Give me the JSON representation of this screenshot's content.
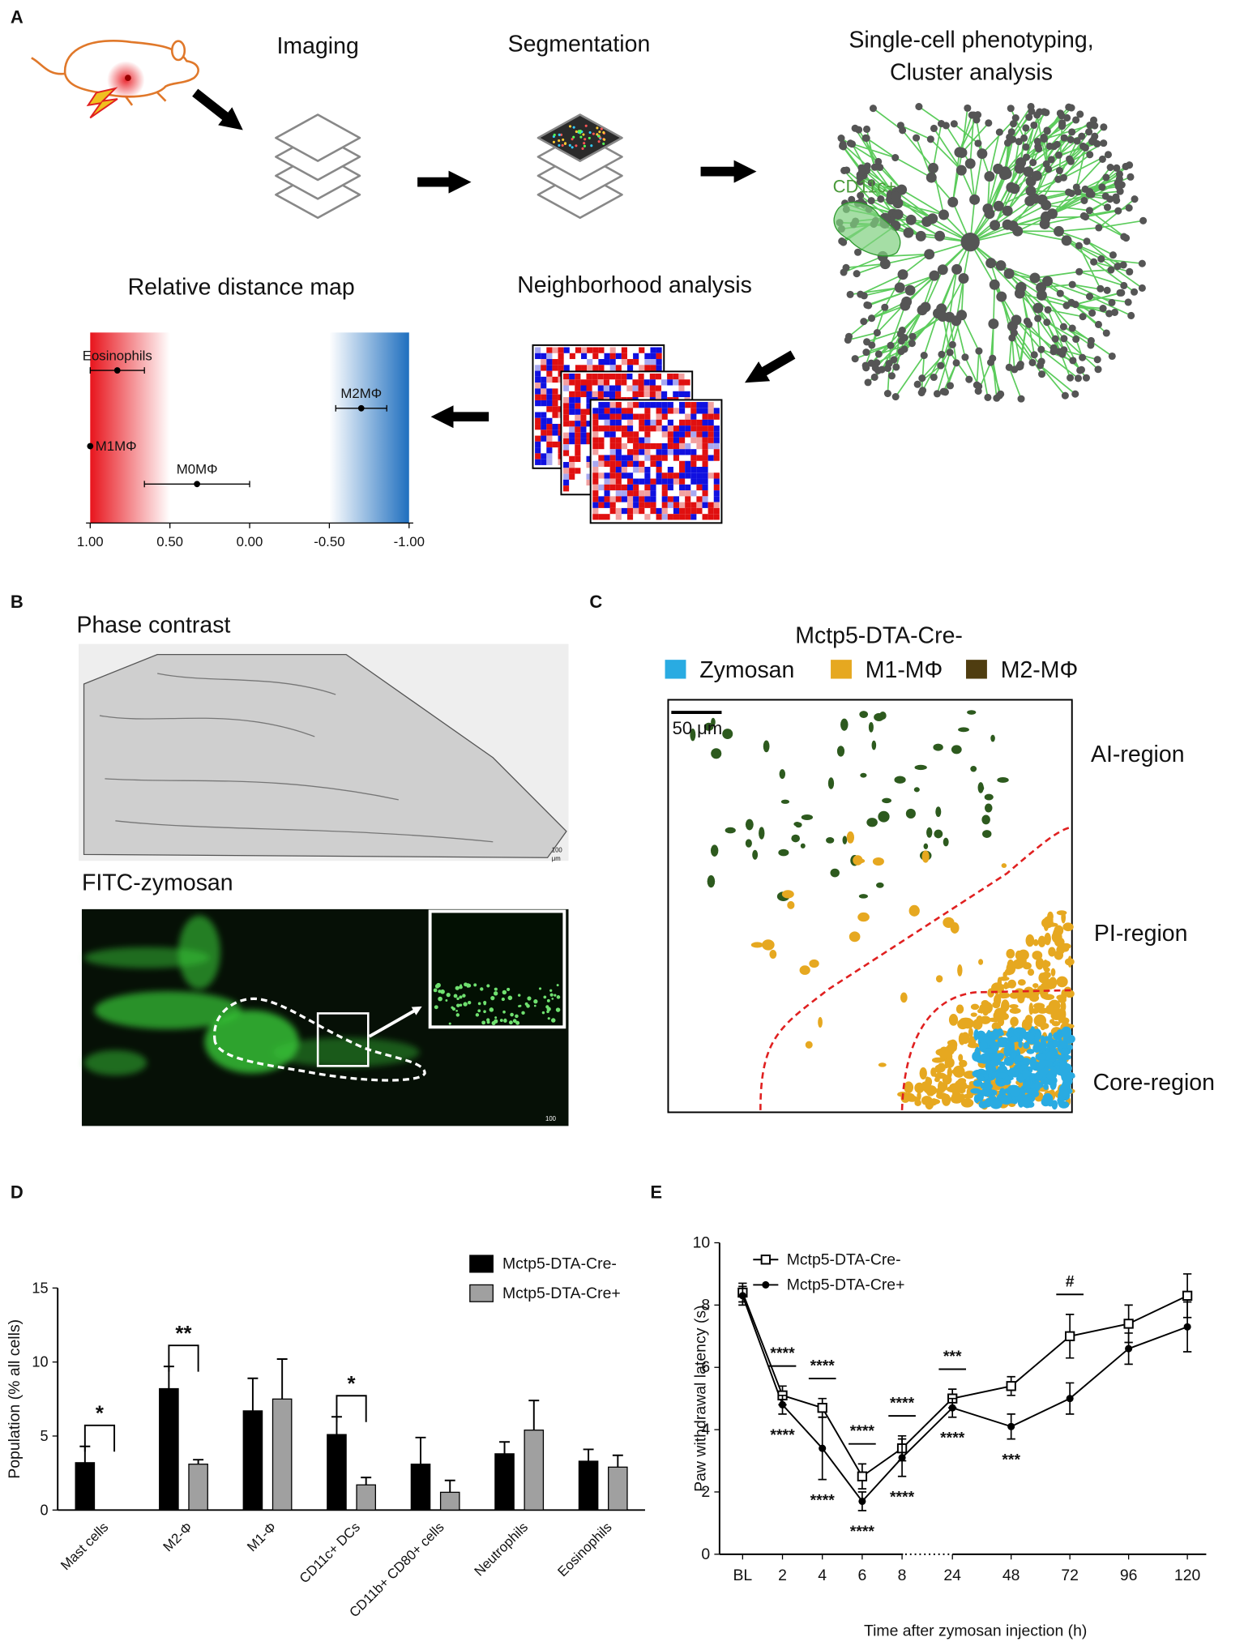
{
  "panel_labels": [
    "A",
    "B",
    "C",
    "D",
    "E"
  ],
  "panel_a": {
    "steps": {
      "imaging": "Imaging",
      "segmentation": "Segmentation",
      "phenotyping": [
        "Single-cell phenotyping,",
        "Cluster analysis"
      ],
      "neighborhood": "Neighborhood analysis",
      "distance_map": "Relative distance map"
    },
    "cluster_label": "CD11c+"
  },
  "panel_b": {
    "phase_title": "Phase contrast",
    "fitc_title": "FITC-zymosan",
    "scale_phase": [
      "100",
      "μm"
    ],
    "scale_fitc": "100"
  },
  "panel_c": {
    "title": "Mctp5-DTA-Cre-",
    "legend": [
      {
        "name": "Zymosan",
        "color": "#29abe2"
      },
      {
        "name": "M1-MΦ",
        "color": "#e6a820"
      },
      {
        "name": "M2-MΦ",
        "color": "#4f3d10"
      }
    ],
    "scale_bar": "50 μm",
    "regions": [
      "AI-region",
      "PI-region",
      "Core-region"
    ]
  },
  "chart_data": [
    {
      "type": "dotplot",
      "categories": [
        "Eosinophils",
        "M2MΦ",
        "M1MΦ",
        "M0MΦ"
      ],
      "values": [
        0.83,
        -0.7,
        1.0,
        0.33
      ],
      "errors": [
        0.17,
        0.16,
        null,
        0.33
      ],
      "xlim": [
        1,
        -1
      ],
      "xticks": [
        {
          "value": 1,
          "label": "1.00"
        },
        {
          "value": 0.5,
          "label": "0.50"
        },
        {
          "value": 0,
          "label": "0.00"
        },
        {
          "value": -0.5,
          "label": "-0.50"
        },
        {
          "value": -1,
          "label": "-1.00"
        }
      ],
      "gradient_colors": [
        "#e8141c",
        "#1f6fbf"
      ]
    },
    {
      "type": "bar",
      "ylabel": "Population (% all cells)",
      "categories": [
        "Mast cells",
        "M2-Φ",
        "M1-Φ",
        "CD11c+ DCs",
        "CD11b+ CD80+ cells",
        "Neutrophils",
        "Eosinophils"
      ],
      "series": [
        {
          "name": "Mctp5-DTA-Cre-",
          "color": "#000000",
          "values": [
            3.2,
            8.2,
            6.7,
            5.1,
            3.1,
            3.8,
            3.3
          ],
          "errors": [
            1.1,
            1.5,
            2.2,
            1.2,
            1.8,
            0.8,
            0.8
          ]
        },
        {
          "name": "Mctp5-DTA-Cre+",
          "color": "#a0a0a0",
          "values": [
            0,
            3.1,
            7.5,
            1.7,
            1.2,
            5.4,
            2.9
          ],
          "errors": [
            null,
            0.3,
            2.7,
            0.5,
            0.8,
            2.0,
            0.8
          ]
        }
      ],
      "ylim": [
        0,
        15
      ],
      "yticks": [
        0,
        5,
        10,
        15
      ],
      "significance": [
        "*",
        "**",
        null,
        "*",
        null,
        null,
        null
      ],
      "legend": "upper right"
    },
    {
      "type": "line",
      "ylabel": "Paw withdrawal latency (s)",
      "xlabel": "Time after zymosan injection (h)",
      "categories": [
        "BL",
        "2",
        "4",
        "6",
        "8",
        "24",
        "48",
        "72",
        "96",
        "120"
      ],
      "series": [
        {
          "name": "Mctp5-DTA-Cre-",
          "color": "#000000",
          "marker": "open-square",
          "values": [
            8.4,
            5.1,
            4.7,
            2.5,
            3.4,
            5.0,
            5.4,
            7.0,
            7.4,
            8.3
          ],
          "errors": [
            0.3,
            0.3,
            0.3,
            0.4,
            0.4,
            0.3,
            0.3,
            0.7,
            0.6,
            0.7
          ]
        },
        {
          "name": "Mctp5-DTA-Cre+",
          "color": "#000000",
          "marker": "filled-circle",
          "values": [
            8.3,
            4.8,
            3.4,
            1.7,
            3.1,
            4.7,
            4.1,
            5.0,
            6.6,
            7.3
          ],
          "errors": [
            0.3,
            0.3,
            1.0,
            0.3,
            0.6,
            0.3,
            0.4,
            0.5,
            0.5,
            0.8
          ]
        }
      ],
      "ylim": [
        0,
        10
      ],
      "yticks": [
        0,
        2,
        4,
        6,
        8,
        10
      ],
      "axis_break": true,
      "significance_above": [
        null,
        "****",
        "****",
        "****",
        "****",
        "***",
        null,
        "#",
        null,
        null
      ],
      "significance_below": [
        null,
        "****",
        "****",
        "****",
        "****",
        "****",
        "***",
        null,
        null,
        null
      ],
      "legend": "upper left"
    }
  ]
}
